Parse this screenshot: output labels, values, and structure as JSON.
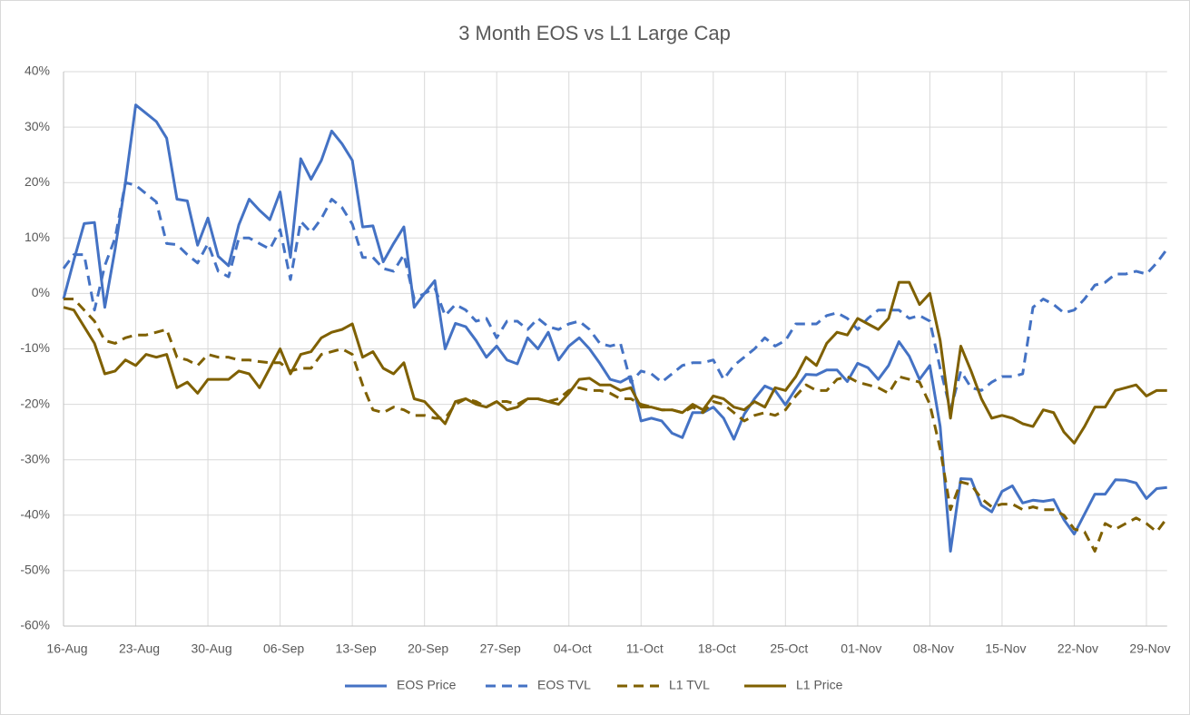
{
  "chart_data": {
    "type": "line",
    "title": "3 Month EOS vs L1 Large Cap",
    "categories": [
      "16-Aug",
      null,
      null,
      null,
      null,
      null,
      null,
      "23-Aug",
      null,
      null,
      null,
      null,
      null,
      null,
      "30-Aug",
      null,
      null,
      null,
      null,
      null,
      null,
      "06-Sep",
      null,
      null,
      null,
      null,
      null,
      null,
      "13-Sep",
      null,
      null,
      null,
      null,
      null,
      null,
      "20-Sep",
      null,
      null,
      null,
      null,
      null,
      null,
      "27-Sep",
      null,
      null,
      null,
      null,
      null,
      null,
      "04-Oct",
      null,
      null,
      null,
      null,
      null,
      null,
      "11-Oct",
      null,
      null,
      null,
      null,
      null,
      null,
      "18-Oct",
      null,
      null,
      null,
      null,
      null,
      null,
      "25-Oct",
      null,
      null,
      null,
      null,
      null,
      null,
      "01-Nov",
      null,
      null,
      null,
      null,
      null,
      null,
      "08-Nov",
      null,
      null,
      null,
      null,
      null,
      null,
      "15-Nov",
      null,
      null,
      null,
      null,
      null,
      null,
      "22-Nov",
      null,
      null,
      null,
      null,
      null,
      null,
      "29-Nov",
      null,
      null
    ],
    "series": [
      {
        "name": "EOS Price",
        "color": "#4472c4",
        "dash": false,
        "values": [
          -1,
          6,
          12.6,
          12.8,
          -2.5,
          8,
          20,
          34,
          32.5,
          31,
          28,
          17,
          16.7,
          8.7,
          13.6,
          6.7,
          5,
          12.4,
          17,
          15,
          13.3,
          18.3,
          6.5,
          24.3,
          20.6,
          24,
          29.3,
          27,
          24,
          12,
          12.2,
          5.7,
          9,
          12,
          -2.5,
          0,
          2.3,
          -10,
          -5.4,
          -6,
          -8.5,
          -11.5,
          -9.5,
          -12,
          -12.7,
          -8,
          -10,
          -7,
          -12,
          -9.5,
          -8,
          -10,
          -12.6,
          -15.5,
          -16,
          -15,
          -23,
          -22.5,
          -23,
          -25.2,
          -26,
          -21.5,
          -21.5,
          -20.5,
          -22.5,
          -26.3,
          -21.8,
          -19,
          -16.7,
          -17.5,
          -20.1,
          -17.2,
          -14.6,
          -14.7,
          -13.8,
          -13.8,
          -15.9,
          -12.6,
          -13.4,
          -15.5,
          -13,
          -8.7,
          -11.3,
          -15.5,
          -13,
          -24,
          -46.5,
          -33.4,
          -33.5,
          -38.2,
          -39.4,
          -35.7,
          -34.7,
          -37.8,
          -37.3,
          -37.5,
          -37.2,
          -40.8,
          -43.4,
          -39.8,
          -36.2,
          -36.2,
          -33.6,
          -33.7,
          -34.2,
          -37,
          -35.2,
          -35
        ]
      },
      {
        "name": "EOS TVL",
        "color": "#4472c4",
        "dash": true,
        "values": [
          4.5,
          7,
          7,
          -3,
          5,
          10,
          20,
          19.5,
          18,
          16.5,
          9,
          8.8,
          7,
          5.5,
          9,
          4,
          3,
          10,
          10,
          9,
          8,
          11.5,
          2.5,
          13,
          11,
          13.5,
          17,
          15.5,
          12.5,
          6.5,
          6.5,
          4.5,
          4,
          7,
          -1,
          0,
          1,
          -4,
          -2,
          -3,
          -5,
          -4.5,
          -8,
          -5,
          -5,
          -6.5,
          -4.5,
          -6,
          -6.5,
          -5.5,
          -5,
          -6.5,
          -9,
          -9.5,
          -9,
          -16,
          -14,
          -14.5,
          -16,
          -14.5,
          -13,
          -12.5,
          -12.5,
          -12,
          -15.5,
          -13,
          -11.5,
          -10,
          -8,
          -9.5,
          -8.5,
          -5.5,
          -5.5,
          -5.5,
          -4,
          -3.5,
          -4.5,
          -6.5,
          -4.5,
          -3,
          -3,
          -3,
          -4.5,
          -4,
          -5,
          -13.5,
          -21,
          -14,
          -17,
          -17.5,
          -16,
          -15,
          -15,
          -14.5,
          -2.5,
          -1,
          -2,
          -3.5,
          -3,
          -1,
          1.5,
          2,
          3.5,
          3.5,
          4,
          3.5,
          5.5,
          8
        ]
      },
      {
        "name": "L1 TVL",
        "color": "#7f6000",
        "dash": true,
        "values": [
          -1,
          -1,
          -3,
          -5,
          -8.5,
          -9,
          -8,
          -7.5,
          -7.5,
          -7,
          -6.5,
          -11.5,
          -12,
          -13,
          -11,
          -11.5,
          -11.5,
          -12,
          -12,
          -12.3,
          -12.5,
          -12.5,
          -14,
          -13.5,
          -13.5,
          -11,
          -10.5,
          -10,
          -11,
          -16.5,
          -21,
          -21.5,
          -20.5,
          -21,
          -22,
          -22,
          -22.5,
          -22.5,
          -20,
          -19,
          -19.5,
          -20.5,
          -19.5,
          -19.5,
          -20,
          -19,
          -19,
          -19.5,
          -19,
          -17.5,
          -17,
          -17.5,
          -17.5,
          -18,
          -19,
          -19,
          -20,
          -20.5,
          -21,
          -21,
          -21.5,
          -20.5,
          -21.5,
          -19.5,
          -20,
          -21.5,
          -23,
          -22,
          -21.5,
          -22,
          -21,
          -18.5,
          -16.5,
          -17.5,
          -17.5,
          -15.5,
          -15,
          -16,
          -16.5,
          -17,
          -18,
          -15,
          -15.5,
          -16,
          -20,
          -28,
          -39,
          -34,
          -34.5,
          -37,
          -38.5,
          -38,
          -38,
          -39,
          -38.5,
          -39,
          -39,
          -40,
          -42.5,
          -43,
          -46.5,
          -41.5,
          -42.5,
          -41.5,
          -40.5,
          -41.5,
          -43,
          -40.5
        ]
      },
      {
        "name": "L1 Price",
        "color": "#7f6000",
        "dash": false,
        "values": [
          -2.5,
          -3,
          -6,
          -9,
          -14.5,
          -14,
          -12,
          -13,
          -11,
          -11.5,
          -11,
          -17,
          -16,
          -18,
          -15.5,
          -15.5,
          -15.5,
          -14,
          -14.5,
          -17,
          -13.5,
          -10,
          -14.5,
          -11,
          -10.5,
          -8,
          -7,
          -6.5,
          -5.5,
          -11.5,
          -10.5,
          -13.5,
          -14.5,
          -12.5,
          -19,
          -19.5,
          -21.5,
          -23.5,
          -19.5,
          -19,
          -20,
          -20.5,
          -19.5,
          -21,
          -20.5,
          -19,
          -19,
          -19.5,
          -20,
          -18,
          -15.5,
          -15.3,
          -16.5,
          -16.5,
          -17.5,
          -17,
          -20.5,
          -20.5,
          -21,
          -21,
          -21.5,
          -20,
          -21,
          -18.5,
          -19,
          -20.5,
          -21,
          -19.5,
          -20.5,
          -17,
          -17.5,
          -15,
          -11.5,
          -13,
          -9,
          -7,
          -7.5,
          -4.5,
          -5.5,
          -6.5,
          -4.5,
          2,
          2,
          -2,
          0,
          -8.5,
          -22.5,
          -9.5,
          -14,
          -19,
          -22.5,
          -22,
          -22.5,
          -23.5,
          -24,
          -21,
          -21.5,
          -25,
          -27,
          -24,
          -20.5,
          -20.5,
          -17.5,
          -17,
          -16.5,
          -18.5,
          -17.5,
          -17.5
        ]
      }
    ],
    "ylim": [
      -60,
      40
    ],
    "yticks": [
      {
        "value": -60,
        "label": "-60%"
      },
      {
        "value": -50,
        "label": "-50%"
      },
      {
        "value": -40,
        "label": "-40%"
      },
      {
        "value": -30,
        "label": "-30%"
      },
      {
        "value": -20,
        "label": "-20%"
      },
      {
        "value": -10,
        "label": "-10%"
      },
      {
        "value": 0,
        "label": "0%"
      },
      {
        "value": 10,
        "label": "10%"
      },
      {
        "value": 20,
        "label": "20%"
      },
      {
        "value": 30,
        "label": "30%"
      },
      {
        "value": 40,
        "label": "40%"
      }
    ],
    "grid": true,
    "legend": "bottom"
  }
}
